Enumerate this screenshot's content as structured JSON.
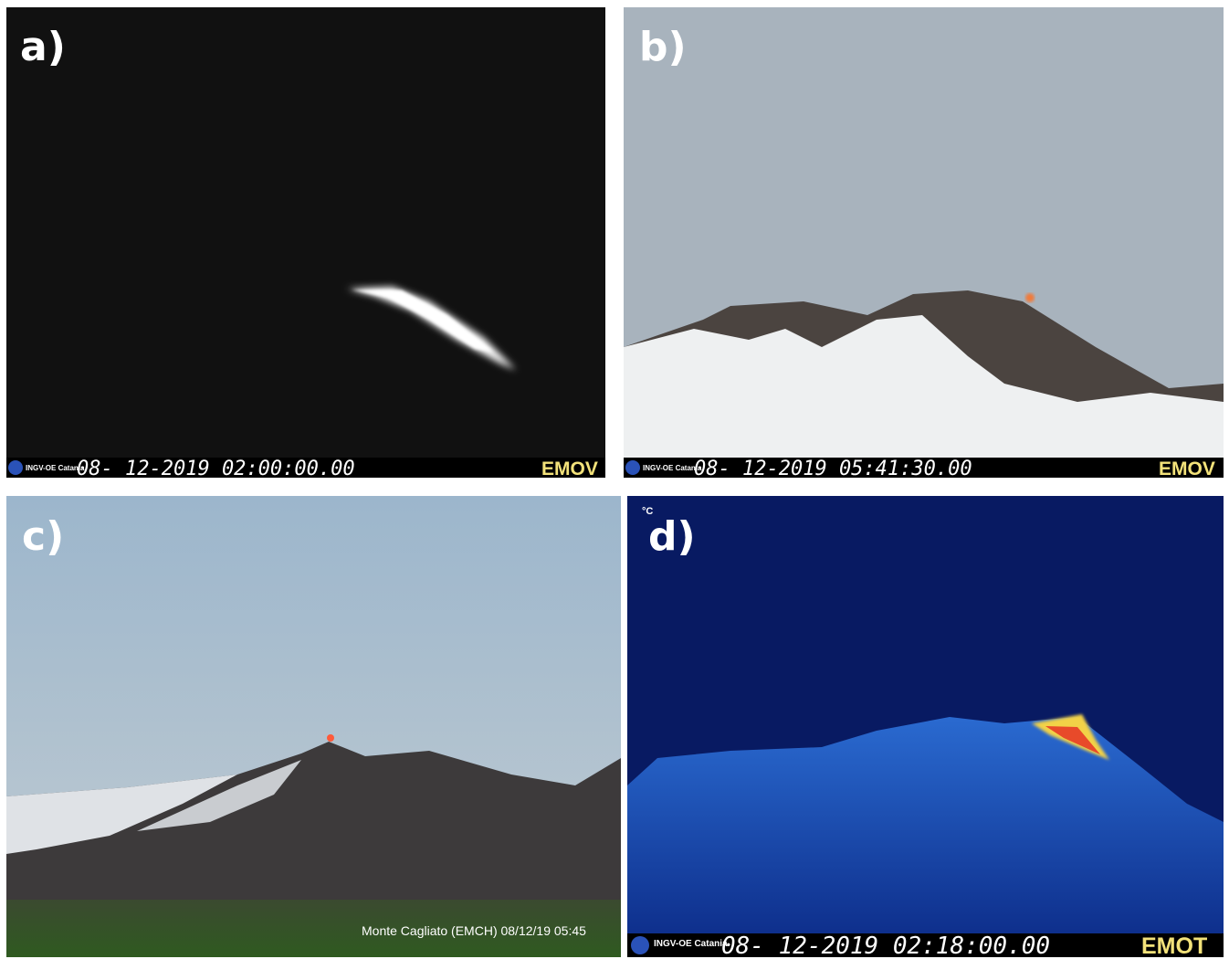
{
  "panels": [
    {
      "label": "a)",
      "logo": "INGV-OE Catania",
      "timestamp": "08- 12-2019  02:00:00.00",
      "camera": "EMOV"
    },
    {
      "label": "b)",
      "logo": "INGV-OE Catania",
      "timestamp": "08- 12-2019  05:41:30.00",
      "camera": "EMOV"
    },
    {
      "label": "c)",
      "caption": "Monte Cagliato (EMCH) 08/12/19 05:45"
    },
    {
      "label": "d)",
      "unit": "°C",
      "logo": "INGV-OE Catania",
      "timestamp": "08- 12-2019  02:18:00.00",
      "camera": "EMOT"
    }
  ]
}
